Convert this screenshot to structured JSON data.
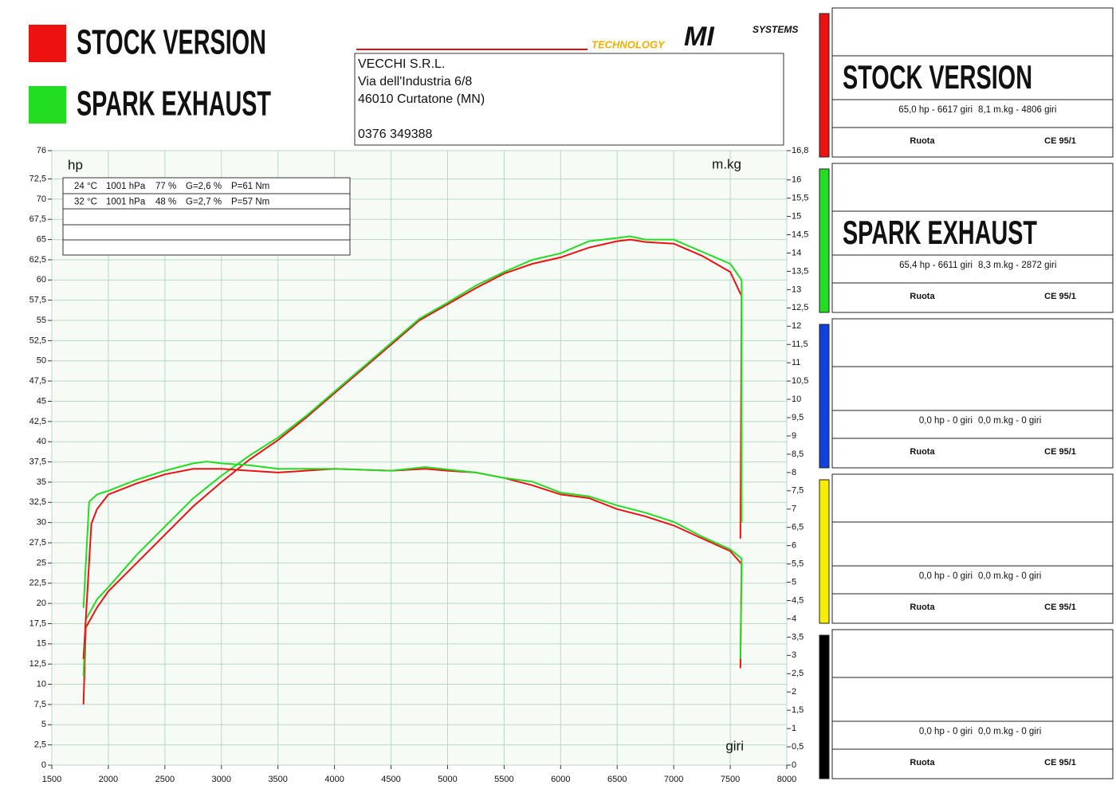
{
  "header": {
    "logo": [
      "TECHNOLOGY",
      "MI",
      "SYSTEMS"
    ],
    "address": [
      "VECCHI S.R.L.",
      "Via dell'Industria 6/8",
      "46010 Curtatone (MN)",
      "0376 349388"
    ]
  },
  "chart_data": {
    "type": "line",
    "y_label": "hp",
    "y2_label": "m.kg",
    "x_label": "giri",
    "xlim": [
      1500,
      8000
    ],
    "xticks": [
      1500,
      2000,
      2500,
      3000,
      3500,
      4000,
      4500,
      5000,
      5500,
      6000,
      6500,
      7000,
      7500,
      8000
    ],
    "ylim": [
      0,
      76
    ],
    "yticks": [
      0,
      {
        "value": 2.5,
        "label": "2,5"
      },
      5,
      {
        "value": 7.5,
        "label": "7,5"
      },
      10,
      {
        "value": 12.5,
        "label": "12,5"
      },
      15,
      {
        "value": 17.5,
        "label": "17,5"
      },
      20,
      {
        "value": 22.5,
        "label": "22,5"
      },
      25,
      {
        "value": 27.5,
        "label": "27,5"
      },
      30,
      {
        "value": 32.5,
        "label": "32,5"
      },
      35,
      {
        "value": 37.5,
        "label": "37,5"
      },
      40,
      {
        "value": 42.5,
        "label": "42,5"
      },
      45,
      {
        "value": 47.5,
        "label": "47,5"
      },
      50,
      {
        "value": 52.5,
        "label": "52,5"
      },
      55,
      {
        "value": 57.5,
        "label": "57,5"
      },
      60,
      {
        "value": 62.5,
        "label": "62,5"
      },
      65,
      {
        "value": 67.5,
        "label": "67,5"
      },
      70,
      {
        "value": 72.5,
        "label": "72,5"
      },
      76
    ],
    "y2lim": [
      0,
      16.8
    ],
    "y2ticks": [
      0,
      {
        "value": 0.5,
        "label": "0,5"
      },
      1,
      {
        "value": 1.5,
        "label": "1,5"
      },
      2,
      {
        "value": 2.5,
        "label": "2,5"
      },
      3,
      {
        "value": 3.5,
        "label": "3,5"
      },
      4,
      {
        "value": 4.5,
        "label": "4,5"
      },
      5,
      {
        "value": 5.5,
        "label": "5,5"
      },
      6,
      {
        "value": 6.5,
        "label": "6,5"
      },
      7,
      {
        "value": 7.5,
        "label": "7,5"
      },
      8,
      {
        "value": 8.5,
        "label": "8,5"
      },
      9,
      {
        "value": 9.5,
        "label": "9,5"
      },
      10,
      {
        "value": 10.5,
        "label": "10,5"
      },
      11,
      {
        "value": 11.5,
        "label": "11,5"
      },
      12,
      {
        "value": 12.5,
        "label": "12,5"
      },
      13,
      {
        "value": 13.5,
        "label": "13,5"
      },
      14,
      {
        "value": 14.5,
        "label": "14,5"
      },
      15,
      {
        "value": 15.5,
        "label": "15,5"
      },
      16,
      {
        "value": 16.8,
        "label": "16,8"
      }
    ],
    "grid": true,
    "conditions": [
      [
        "24 °C",
        "1001 hPa",
        "77 %",
        "G=2,6 %",
        "P=61 Nm"
      ],
      [
        "32 °C",
        "1001 hPa",
        "48 %",
        "G=2,7 %",
        "P=57 Nm"
      ]
    ],
    "series": [
      {
        "name": "STOCK VERSION",
        "color": "#ee1111",
        "x": [
          1780,
          1800,
          1900,
          2000,
          2250,
          2500,
          2750,
          3000,
          3250,
          3500,
          3750,
          4000,
          4250,
          4500,
          4750,
          5000,
          5250,
          5500,
          5750,
          6000,
          6250,
          6500,
          6617,
          6750,
          7000,
          7250,
          7500,
          7600,
          7590
        ],
        "values": [
          7.5,
          17,
          19.5,
          21.5,
          25,
          28.5,
          32,
          35,
          37.8,
          40.2,
          43,
          46,
          49,
          52,
          55,
          57,
          59,
          60.8,
          62,
          62.8,
          64,
          64.8,
          65,
          64.7,
          64.5,
          63,
          61,
          58,
          28
        ]
      },
      {
        "name": "SPARK EXHAUST",
        "color": "#22dd22",
        "x": [
          1780,
          1800,
          1900,
          2000,
          2250,
          2500,
          2750,
          3000,
          3250,
          3500,
          3750,
          4000,
          4250,
          4500,
          4750,
          5000,
          5250,
          5500,
          5750,
          6000,
          6250,
          6500,
          6611,
          6750,
          7000,
          7250,
          7500,
          7600,
          7600
        ],
        "values": [
          11,
          18,
          20.5,
          22,
          26,
          29.5,
          33,
          35.8,
          38.3,
          40.5,
          43.2,
          46.2,
          49.2,
          52.2,
          55.2,
          57.2,
          59.3,
          61,
          62.5,
          63.3,
          64.8,
          65.2,
          65.4,
          65,
          65,
          63.5,
          62,
          60,
          30
        ]
      },
      {
        "name": "STOCK VERSION",
        "color": "#ee1111",
        "axis": "y2",
        "x": [
          1780,
          1850,
          1900,
          2000,
          2250,
          2500,
          2750,
          3000,
          3250,
          3500,
          4000,
          4500,
          4806,
          5000,
          5250,
          5500,
          5750,
          6000,
          6250,
          6500,
          6750,
          7000,
          7250,
          7500,
          7600,
          7590
        ],
        "values": [
          2.9,
          6.6,
          7.0,
          7.4,
          7.7,
          7.95,
          8.1,
          8.1,
          8.05,
          8.0,
          8.1,
          8.05,
          8.1,
          8.05,
          8.0,
          7.85,
          7.65,
          7.4,
          7.3,
          7.0,
          6.8,
          6.55,
          6.2,
          5.85,
          5.5,
          2.65
        ]
      },
      {
        "name": "SPARK EXHAUST",
        "color": "#22dd22",
        "axis": "y2",
        "x": [
          1780,
          1830,
          1900,
          2000,
          2250,
          2500,
          2750,
          2872,
          3000,
          3250,
          3500,
          4000,
          4500,
          4800,
          5250,
          5500,
          5750,
          6000,
          6250,
          6500,
          6750,
          7000,
          7250,
          7500,
          7600,
          7590
        ],
        "values": [
          4.3,
          7.2,
          7.4,
          7.5,
          7.8,
          8.05,
          8.25,
          8.3,
          8.25,
          8.2,
          8.1,
          8.1,
          8.05,
          8.15,
          8.0,
          7.85,
          7.75,
          7.45,
          7.35,
          7.1,
          6.9,
          6.65,
          6.25,
          5.9,
          5.65,
          2.9
        ]
      }
    ]
  },
  "panels": [
    {
      "color": "#ee1111",
      "name": "STOCK VERSION",
      "power": "65,0 hp - 6617 giri",
      "torque": "8,1 m.kg - 4806 giri",
      "wheel": "Ruota",
      "norm": "CE 95/1"
    },
    {
      "color": "#22dd22",
      "name": "SPARK EXHAUST",
      "power": "65,4 hp - 6611 giri",
      "torque": "8,3 m.kg - 2872 giri",
      "wheel": "Ruota",
      "norm": "CE 95/1"
    },
    {
      "color": "#1040dd",
      "power": "0,0 hp - 0 giri",
      "torque": "0,0 m.kg - 0 giri",
      "wheel": "Ruota",
      "norm": "CE 95/1"
    },
    {
      "color": "#f5ee00",
      "power": "0,0 hp - 0 giri",
      "torque": "0,0 m.kg - 0 giri",
      "wheel": "Ruota",
      "norm": "CE 95/1"
    },
    {
      "color": "#000000",
      "power": "0,0 hp - 0 giri",
      "torque": "0,0 m.kg - 0 giri",
      "wheel": "Ruota",
      "norm": "CE 95/1"
    }
  ]
}
